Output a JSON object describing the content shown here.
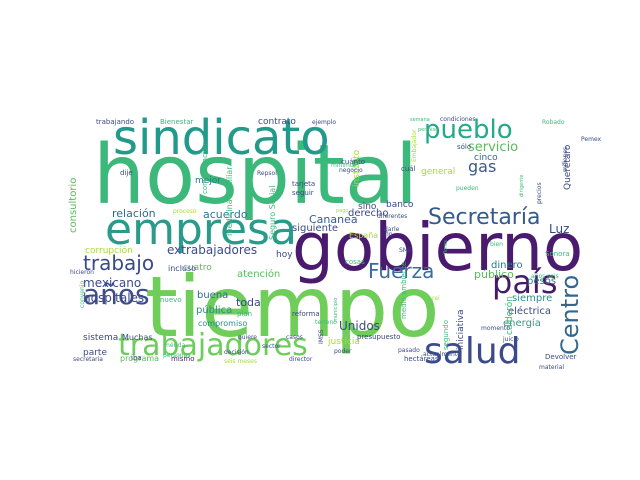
{
  "words": [
    {
      "text": "hospital",
      "color": "#3cb97a"
    },
    {
      "text": "tiempo",
      "color": "#6fcd5a"
    },
    {
      "text": "gobierno",
      "color": "#4a1a6e"
    },
    {
      "text": "sindicato",
      "color": "#229a8a"
    },
    {
      "text": "empresa",
      "color": "#2a9a8a"
    },
    {
      "text": "trabajadores",
      "color": "#6ccd5b"
    },
    {
      "text": "salud",
      "color": "#3b4a8a"
    },
    {
      "text": "pueblo",
      "color": "#24a98a"
    },
    {
      "text": "Secretaría",
      "color": "#345a8c"
    },
    {
      "text": "país",
      "color": "#461a6a"
    },
    {
      "text": "años",
      "color": "#3e4c8a"
    },
    {
      "text": "Centro",
      "color": "#31698e"
    },
    {
      "text": "Fuerza",
      "color": "#3b6a9c"
    },
    {
      "text": "trabajo",
      "color": "#3a4a86"
    },
    {
      "text": "gas",
      "color": "#3a5a8a"
    },
    {
      "text": "servicio",
      "color": "#5aba5a"
    },
    {
      "text": "relación",
      "color": "#2f6a8e"
    },
    {
      "text": "acuerdo",
      "color": "#2a7a8e"
    },
    {
      "text": "Cananea",
      "color": "#3b5a8c"
    },
    {
      "text": "extrabajadores",
      "color": "#3a4c8a"
    },
    {
      "text": "Luz",
      "color": "#2f4c82"
    },
    {
      "text": "mexicano",
      "color": "#3a4c8a"
    },
    {
      "text": "hospitales",
      "color": "#3b4a86"
    },
    {
      "text": "público",
      "color": "#5aba5a"
    },
    {
      "text": "siempre",
      "color": "#2e8c8a"
    },
    {
      "text": "Unidos",
      "color": "#3a4a86"
    },
    {
      "text": "energía",
      "color": "#2c9e84"
    },
    {
      "text": "eléctrica",
      "color": "#3b4a8a"
    },
    {
      "text": "dinero",
      "color": "#2a7a8e"
    },
    {
      "text": "pesos",
      "color": "#2e7c8a"
    },
    {
      "text": "cinco",
      "color": "#35678c"
    },
    {
      "text": "consultorio",
      "color": "#5aba5a"
    },
    {
      "text": "corrupción",
      "color": "#a8db34"
    },
    {
      "text": "atención",
      "color": "#5aba5a"
    },
    {
      "text": "pública",
      "color": "#2e8c8a"
    },
    {
      "text": "buena",
      "color": "#2f6a8e"
    },
    {
      "text": "toda",
      "color": "#3b4a86"
    },
    {
      "text": "compromiso",
      "color": "#2c8c8a"
    },
    {
      "text": "siguiente",
      "color": "#3b4a86"
    },
    {
      "text": "justicia",
      "color": "#a8db34"
    },
    {
      "text": "derecho",
      "color": "#3b4a86"
    },
    {
      "text": "banco",
      "color": "#3a4a86"
    },
    {
      "text": "sino",
      "color": "#3a4a86"
    },
    {
      "text": "contrato",
      "color": "#3b4a86"
    },
    {
      "text": "mejor",
      "color": "#2a7a8e"
    },
    {
      "text": "hoy",
      "color": "#3b4a86"
    },
    {
      "text": "cuatro",
      "color": "#5aba5a"
    },
    {
      "text": "incluso",
      "color": "#3b4a86"
    },
    {
      "text": "sistema",
      "color": "#3b4a86"
    },
    {
      "text": "parte",
      "color": "#3b4a86"
    },
    {
      "text": "Muchas",
      "color": "#3b4a86"
    },
    {
      "text": "programa",
      "color": "#5aba5a"
    },
    {
      "text": "mismo",
      "color": "#4a1a6e"
    },
    {
      "text": "España",
      "color": "#a8db34"
    },
    {
      "text": "Querétaro",
      "color": "#3b4a86"
    },
    {
      "text": "general",
      "color": "#a8db34"
    },
    {
      "text": "instituto",
      "color": "#a8db34"
    },
    {
      "text": "calderón",
      "color": "#3cb97a"
    },
    {
      "text": "iniciativa",
      "color": "#3b4a86"
    },
    {
      "text": "segundo",
      "color": "#3cb97a"
    },
    {
      "text": "presupuesto",
      "color": "#3b4a86"
    },
    {
      "text": "medio ambiente",
      "color": "#3cb97a"
    },
    {
      "text": "Seguro Social",
      "color": "#3cb97a"
    },
    {
      "text": "medicina familiar",
      "color": "#3cb97a"
    },
    {
      "text": "compensación",
      "color": "#3cb97a"
    },
    {
      "text": "trabajando",
      "color": "#3b4a86"
    },
    {
      "text": "Bienestar",
      "color": "#3cb97a"
    },
    {
      "text": "ejemplo",
      "color": "#3b4a86"
    },
    {
      "text": "semana",
      "color": "#3cb97a"
    },
    {
      "text": "condiciones",
      "color": "#3b4a86"
    },
    {
      "text": "permiso",
      "color": "#3cb97a"
    },
    {
      "text": "sólo",
      "color": "#3b4a86"
    },
    {
      "text": "Robado",
      "color": "#3cb97a"
    },
    {
      "text": "Pemex",
      "color": "#3b4a86"
    },
    {
      "text": "millones",
      "color": "#3b4a86"
    },
    {
      "text": "precios",
      "color": "#3b4a86"
    },
    {
      "text": "tarjeta",
      "color": "#3b4a86"
    },
    {
      "text": "seguir",
      "color": "#3b4a86"
    },
    {
      "text": "cuál",
      "color": "#3b4a86"
    },
    {
      "text": "cuánto",
      "color": "#3b4a86"
    },
    {
      "text": "negocio",
      "color": "#3b4a86"
    },
    {
      "text": "mínimo",
      "color": "#3cb97a"
    },
    {
      "text": "Unidad",
      "color": "#3cb97a"
    },
    {
      "text": "Repsol",
      "color": "#3b4a86"
    },
    {
      "text": "dije",
      "color": "#3b4a86"
    },
    {
      "text": "pueden",
      "color": "#3cb97a"
    },
    {
      "text": "dirigente",
      "color": "#3cb97a"
    },
    {
      "text": "diferentes",
      "color": "#3b4a86"
    },
    {
      "text": "darle",
      "color": "#3b4a86"
    },
    {
      "text": "fin",
      "color": "#3b4a86"
    },
    {
      "text": "Sonora",
      "color": "#3cb97a"
    },
    {
      "text": "bien",
      "color": "#3cb97a"
    },
    {
      "text": "flores",
      "color": "#3cb97a"
    },
    {
      "text": "SME",
      "color": "#3b4a86"
    },
    {
      "text": "cosas",
      "color": "#3cb97a"
    },
    {
      "text": "años seis",
      "color": "#3cb97a"
    },
    {
      "text": "juicio",
      "color": "#3b4a86"
    },
    {
      "text": "momento",
      "color": "#3b4a86"
    },
    {
      "text": "actualmente",
      "color": "#3b4a86"
    },
    {
      "text": "pasado",
      "color": "#3b4a86"
    },
    {
      "text": "material",
      "color": "#3b4a86"
    },
    {
      "text": "hectáreas",
      "color": "#3b4a86"
    },
    {
      "text": "Devolver",
      "color": "#3b4a86"
    },
    {
      "text": "casos",
      "color": "#3b4a86"
    },
    {
      "text": "reforma",
      "color": "#3b4a86"
    },
    {
      "text": "terreno",
      "color": "#3cb97a"
    },
    {
      "text": "municipio",
      "color": "#3cb97a"
    },
    {
      "text": "IMSS",
      "color": "#3b4a86"
    },
    {
      "text": "sector",
      "color": "#3b4a86"
    },
    {
      "text": "quiere",
      "color": "#3b4a86"
    },
    {
      "text": "decisión",
      "color": "#3b4a86"
    },
    {
      "text": "plan",
      "color": "#3cb97a"
    },
    {
      "text": "poder",
      "color": "#3b4a86"
    },
    {
      "text": "director",
      "color": "#3b4a86"
    },
    {
      "text": "seis meses",
      "color": "#a8db34"
    },
    {
      "text": "secretaria",
      "color": "#3b4a86"
    },
    {
      "text": "convenio",
      "color": "#3cb97a"
    },
    {
      "text": "hicieron",
      "color": "#3b4a86"
    },
    {
      "text": "iba",
      "color": "#3b4a86"
    },
    {
      "text": "nuevo",
      "color": "#3cb97a"
    },
    {
      "text": "mérida",
      "color": "#3cb97a"
    },
    {
      "text": "personas",
      "color": "#3cb97a"
    },
    {
      "text": "proceso",
      "color": "#a8db34"
    },
    {
      "text": "pago",
      "color": "#a8db34"
    },
    {
      "text": "Embajador",
      "color": "#a8db34"
    },
    {
      "text": "rei",
      "color": "#a8db34"
    }
  ]
}
